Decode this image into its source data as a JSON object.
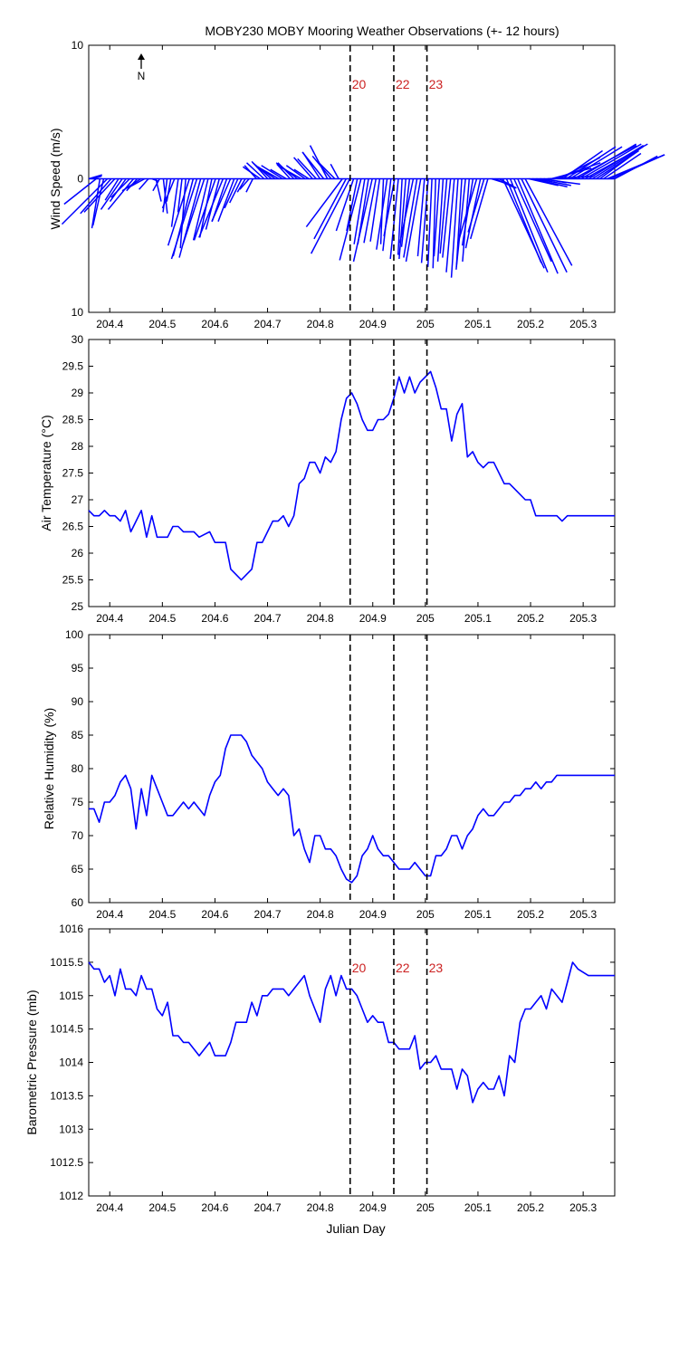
{
  "title": "MOBY230 MOBY Mooring Weather Observations (+- 12 hours)",
  "xlabel": "Julian Day",
  "north_label": "N",
  "colors": {
    "series": "#0000ff",
    "marker_text": "#cc2222",
    "axes": "#000000",
    "marker_line": "#000000"
  },
  "x_ticks": [
    "204.4",
    "204.5",
    "204.6",
    "204.7",
    "204.8",
    "204.9",
    "205",
    "205.1",
    "205.2",
    "205.3"
  ],
  "markers": [
    {
      "label": "20",
      "x": 204.857
    },
    {
      "label": "22",
      "x": 204.94
    },
    {
      "label": "23",
      "x": 205.003
    }
  ],
  "chart_data": [
    {
      "type": "vector",
      "ylabel": "Wind Speed (m/s)",
      "ytick_labels": [
        "10",
        "0",
        "10"
      ],
      "ylim": [
        -10,
        10
      ],
      "xlim": [
        204.36,
        205.36
      ],
      "marker_labels_visible": true,
      "north_arrow": true,
      "u": [
        1.0,
        0.7,
        -2.4,
        -0.6,
        -0.8,
        -3.4,
        -2.3,
        -2.3,
        -1.0,
        -1.6,
        -1.2,
        -1.4,
        -1.9,
        -0.8,
        -1.4,
        -1.3,
        -0.7,
        0.5,
        0.4,
        -0.5,
        0.3,
        -0.3,
        -0.3,
        -0.9,
        -0.5,
        -0.3,
        -0.4,
        -1.6,
        -1.5,
        -1.9,
        -1.6,
        -1.6,
        -1.1,
        -0.9,
        -1.6,
        -1.0,
        -1.8,
        -1.1,
        -1.4,
        -1.2,
        -1.0,
        -0.9,
        -0.6,
        -0.7,
        -0.5,
        -0.9,
        -1.3,
        -1.3,
        -1.2,
        -1.4,
        -1.3,
        -1.6,
        -1.6,
        -1.2,
        -1.0,
        -1.2,
        -1.6,
        -1.6,
        -1.4,
        -1.1,
        -1.4,
        -1.4,
        -1.3,
        -1.6,
        -1.3,
        -1.4,
        -1.2,
        -0.6,
        -2.7,
        -2.4,
        -2.9,
        -1.3,
        -0.8,
        -1.6,
        -0.8,
        -0.8,
        -1.4,
        -0.9,
        -0.7,
        -0.2,
        -0.8,
        -0.6,
        -0.8,
        -0.6,
        -0.3,
        -0.5,
        -0.6,
        -1.0,
        -1.0,
        -1.1,
        -0.5,
        -0.5,
        -0.3,
        -0.2,
        -0.4,
        -0.4,
        -0.5,
        -0.6,
        -0.6,
        -0.5,
        -0.4,
        -0.7,
        -0.5,
        -0.8,
        -1.4,
        -1.1,
        -1.2,
        -1.3,
        1.6,
        1.5,
        1.3,
        3.1,
        2.6,
        2.8,
        2.8,
        3.0,
        3.4,
        3.5,
        2.2,
        2.6,
        2.6,
        3.0,
        1.7,
        3.5,
        3.0,
        3.4,
        3.1,
        3.0,
        3.7,
        3.9,
        4.7,
        4.4,
        4.5,
        4.7,
        4.1,
        3.8,
        3.2,
        2.6,
        2.8,
        4.3,
        4.0,
        3.2
      ],
      "v": [
        0.3,
        0.2,
        -1.9,
        -3.7,
        -3.5,
        -3.4,
        -2.6,
        -2.5,
        -1.6,
        -2.3,
        -1.7,
        -1.4,
        -2.3,
        -0.9,
        -0.9,
        -0.7,
        -0.8,
        -0.2,
        -1.7,
        -0.9,
        -2.6,
        -2.5,
        -1.7,
        -2.2,
        -3.6,
        -2.5,
        -5.2,
        -5.0,
        -5.8,
        -6.0,
        -5.9,
        -4.9,
        -4.6,
        -4.4,
        -4.6,
        -3.8,
        -4.4,
        -3.2,
        -3.2,
        -3.2,
        -2.2,
        -1.8,
        -1.0,
        -0.8,
        -1.0,
        1.0,
        0.9,
        1.2,
        1.3,
        1.2,
        0.9,
        0.9,
        1.0,
        0.7,
        1.1,
        1.2,
        1.2,
        0.9,
        1.0,
        0.7,
        1.6,
        1.5,
        2.0,
        2.0,
        2.5,
        1.7,
        1.2,
        1.1,
        -3.6,
        -4.5,
        -5.6,
        -3.9,
        -3.9,
        -6.1,
        -4.9,
        -4.9,
        -6.2,
        -4.8,
        -4.7,
        -4.9,
        -5.3,
        -5.4,
        -4.3,
        -6.0,
        -5.7,
        -6.0,
        -5.1,
        -4.8,
        -5.9,
        -6.2,
        -5.8,
        -6.3,
        -6.6,
        -6.7,
        -5.8,
        -6.2,
        -5.6,
        -5.9,
        -7.0,
        -7.4,
        -6.6,
        -6.8,
        -6.2,
        -5.0,
        -4.8,
        -5.2,
        -4.0,
        -4.5,
        -0.5,
        -0.7,
        -0.7,
        -6.7,
        -6.3,
        -7.0,
        -6.2,
        -7.1,
        -7.0,
        -6.5,
        -0.5,
        -0.6,
        -0.5,
        -0.4,
        -0.3,
        0.2,
        0.8,
        1.2,
        1.6,
        2.1,
        2.4,
        2.4,
        2.5,
        2.6,
        2.6,
        2.6,
        2.5,
        2.4,
        2.1,
        1.9,
        1.9,
        1.8,
        1.8,
        1.7
      ]
    },
    {
      "type": "line",
      "ylabel": "Air Temperature (°C)",
      "ytick_labels": [
        "25",
        "25.5",
        "26",
        "26.5",
        "27",
        "27.5",
        "28",
        "28.5",
        "29",
        "29.5",
        "30"
      ],
      "ylim": [
        25,
        30
      ],
      "xlim": [
        204.36,
        205.36
      ],
      "marker_labels_visible": false,
      "x": [
        204.36,
        204.37,
        204.38,
        204.39,
        204.4,
        204.41,
        204.42,
        204.43,
        204.44,
        204.45,
        204.46,
        204.47,
        204.48,
        204.49,
        204.5,
        204.51,
        204.52,
        204.53,
        204.54,
        204.55,
        204.56,
        204.57,
        204.58,
        204.59,
        204.6,
        204.61,
        204.62,
        204.63,
        204.64,
        204.65,
        204.66,
        204.67,
        204.68,
        204.69,
        204.7,
        204.71,
        204.72,
        204.73,
        204.74,
        204.75,
        204.76,
        204.77,
        204.78,
        204.79,
        204.8,
        204.81,
        204.82,
        204.83,
        204.84,
        204.85,
        204.86,
        204.87,
        204.88,
        204.89,
        204.9,
        204.91,
        204.92,
        204.93,
        204.94,
        204.95,
        204.96,
        204.97,
        204.98,
        204.99,
        205.0,
        205.01,
        205.02,
        205.03,
        205.04,
        205.05,
        205.06,
        205.07,
        205.08,
        205.09,
        205.1,
        205.11,
        205.12,
        205.13,
        205.14,
        205.15,
        205.16,
        205.17,
        205.18,
        205.19,
        205.2,
        205.21,
        205.22,
        205.23,
        205.24,
        205.25,
        205.26,
        205.27,
        205.28,
        205.29,
        205.3,
        205.31,
        205.32,
        205.33,
        205.34,
        205.35,
        205.36
      ],
      "y": [
        26.8,
        26.7,
        26.7,
        26.8,
        26.7,
        26.7,
        26.6,
        26.8,
        26.4,
        26.6,
        26.8,
        26.3,
        26.7,
        26.3,
        26.3,
        26.3,
        26.5,
        26.5,
        26.4,
        26.4,
        26.4,
        26.3,
        26.35,
        26.4,
        26.2,
        26.2,
        26.2,
        25.7,
        25.6,
        25.5,
        25.6,
        25.7,
        26.2,
        26.2,
        26.4,
        26.6,
        26.6,
        26.7,
        26.5,
        26.7,
        27.3,
        27.4,
        27.7,
        27.7,
        27.5,
        27.8,
        27.7,
        27.9,
        28.5,
        28.9,
        29.0,
        28.8,
        28.5,
        28.3,
        28.3,
        28.5,
        28.5,
        28.6,
        28.9,
        29.3,
        29.0,
        29.3,
        29.0,
        29.2,
        29.3,
        29.4,
        29.1,
        28.7,
        28.7,
        28.1,
        28.6,
        28.8,
        27.8,
        27.9,
        27.7,
        27.6,
        27.7,
        27.7,
        27.5,
        27.3,
        27.3,
        27.2,
        27.1,
        27.0,
        27.0,
        26.7,
        26.7,
        26.7,
        26.7,
        26.7,
        26.6,
        26.7,
        26.7,
        26.7,
        26.7,
        26.7,
        26.7,
        26.7,
        26.7,
        26.7,
        26.7
      ]
    },
    {
      "type": "line",
      "ylabel": "Relative Humidity (%)",
      "ytick_labels": [
        "60",
        "65",
        "70",
        "75",
        "80",
        "85",
        "90",
        "95",
        "100"
      ],
      "ylim": [
        60,
        100
      ],
      "xlim": [
        204.36,
        205.36
      ],
      "marker_labels_visible": false,
      "x": [
        204.36,
        204.37,
        204.38,
        204.39,
        204.4,
        204.41,
        204.42,
        204.43,
        204.44,
        204.45,
        204.46,
        204.47,
        204.48,
        204.49,
        204.5,
        204.51,
        204.52,
        204.53,
        204.54,
        204.55,
        204.56,
        204.57,
        204.58,
        204.59,
        204.6,
        204.61,
        204.62,
        204.63,
        204.64,
        204.65,
        204.66,
        204.67,
        204.68,
        204.69,
        204.7,
        204.71,
        204.72,
        204.73,
        204.74,
        204.75,
        204.76,
        204.77,
        204.78,
        204.79,
        204.8,
        204.81,
        204.82,
        204.83,
        204.84,
        204.85,
        204.86,
        204.87,
        204.88,
        204.89,
        204.9,
        204.91,
        204.92,
        204.93,
        204.94,
        204.95,
        204.96,
        204.97,
        204.98,
        204.99,
        205.0,
        205.01,
        205.02,
        205.03,
        205.04,
        205.05,
        205.06,
        205.07,
        205.08,
        205.09,
        205.1,
        205.11,
        205.12,
        205.13,
        205.14,
        205.15,
        205.16,
        205.17,
        205.18,
        205.19,
        205.2,
        205.21,
        205.22,
        205.23,
        205.24,
        205.25,
        205.26,
        205.27,
        205.28,
        205.29,
        205.3,
        205.31,
        205.32,
        205.33,
        205.34,
        205.35,
        205.36
      ],
      "y": [
        74,
        74,
        72,
        75,
        75,
        76,
        78,
        79,
        77,
        71,
        77,
        73,
        79,
        77,
        75,
        73,
        73,
        74,
        75,
        74,
        75,
        74,
        73,
        76,
        78,
        79,
        83,
        85,
        85,
        85,
        84,
        82,
        81,
        80,
        78,
        77,
        76,
        77,
        76,
        70,
        71,
        68,
        66,
        70,
        70,
        68,
        68,
        67,
        65,
        63.5,
        63,
        64,
        67,
        68,
        70,
        68,
        67,
        67,
        66,
        65,
        65,
        65,
        66,
        65,
        64,
        64,
        67,
        67,
        68,
        70,
        70,
        68,
        70,
        71,
        73,
        74,
        73,
        73,
        74,
        75,
        75,
        76,
        76,
        77,
        77,
        78,
        77,
        78,
        78,
        79,
        79,
        79,
        79,
        79,
        79,
        79,
        79,
        79,
        79,
        79,
        79
      ]
    },
    {
      "type": "line",
      "ylabel": "Barometric Pressure (mb)",
      "ytick_labels": [
        "1012",
        "1012.5",
        "1013",
        "1013.5",
        "1014",
        "1014.5",
        "1015",
        "1015.5",
        "1016"
      ],
      "ylim": [
        1012,
        1016
      ],
      "xlim": [
        204.36,
        205.36
      ],
      "marker_labels_visible": true,
      "x": [
        204.36,
        204.37,
        204.38,
        204.39,
        204.4,
        204.41,
        204.42,
        204.43,
        204.44,
        204.45,
        204.46,
        204.47,
        204.48,
        204.49,
        204.5,
        204.51,
        204.52,
        204.53,
        204.54,
        204.55,
        204.56,
        204.57,
        204.58,
        204.59,
        204.6,
        204.61,
        204.62,
        204.63,
        204.64,
        204.65,
        204.66,
        204.67,
        204.68,
        204.69,
        204.7,
        204.71,
        204.72,
        204.73,
        204.74,
        204.75,
        204.76,
        204.77,
        204.78,
        204.79,
        204.8,
        204.81,
        204.82,
        204.83,
        204.84,
        204.85,
        204.86,
        204.87,
        204.88,
        204.89,
        204.9,
        204.91,
        204.92,
        204.93,
        204.94,
        204.95,
        204.96,
        204.97,
        204.98,
        204.99,
        205.0,
        205.01,
        205.02,
        205.03,
        205.04,
        205.05,
        205.06,
        205.07,
        205.08,
        205.09,
        205.1,
        205.11,
        205.12,
        205.13,
        205.14,
        205.15,
        205.16,
        205.17,
        205.18,
        205.19,
        205.2,
        205.21,
        205.22,
        205.23,
        205.24,
        205.25,
        205.26,
        205.27,
        205.28,
        205.29,
        205.3,
        205.31,
        205.32,
        205.33,
        205.34,
        205.35,
        205.36
      ],
      "y": [
        1015.5,
        1015.4,
        1015.4,
        1015.2,
        1015.3,
        1015.0,
        1015.4,
        1015.1,
        1015.1,
        1015.0,
        1015.3,
        1015.1,
        1015.1,
        1014.8,
        1014.7,
        1014.9,
        1014.4,
        1014.4,
        1014.3,
        1014.3,
        1014.2,
        1014.1,
        1014.2,
        1014.3,
        1014.1,
        1014.1,
        1014.1,
        1014.3,
        1014.6,
        1014.6,
        1014.6,
        1014.9,
        1014.7,
        1015.0,
        1015.0,
        1015.1,
        1015.1,
        1015.1,
        1015.0,
        1015.1,
        1015.2,
        1015.3,
        1015.0,
        1014.8,
        1014.6,
        1015.1,
        1015.3,
        1015.0,
        1015.3,
        1015.1,
        1015.1,
        1015.0,
        1014.8,
        1014.6,
        1014.7,
        1014.6,
        1014.6,
        1014.3,
        1014.3,
        1014.2,
        1014.2,
        1014.2,
        1014.4,
        1013.9,
        1014.0,
        1014.0,
        1014.1,
        1013.9,
        1013.9,
        1013.9,
        1013.6,
        1013.9,
        1013.8,
        1013.4,
        1013.6,
        1013.7,
        1013.6,
        1013.6,
        1013.8,
        1013.5,
        1014.1,
        1014.0,
        1014.6,
        1014.8,
        1014.8,
        1014.9,
        1015.0,
        1014.8,
        1015.1,
        1015.0,
        1014.9,
        1015.2,
        1015.5,
        1015.4,
        1015.35,
        1015.3,
        1015.3,
        1015.3,
        1015.3,
        1015.3,
        1015.3
      ]
    }
  ]
}
